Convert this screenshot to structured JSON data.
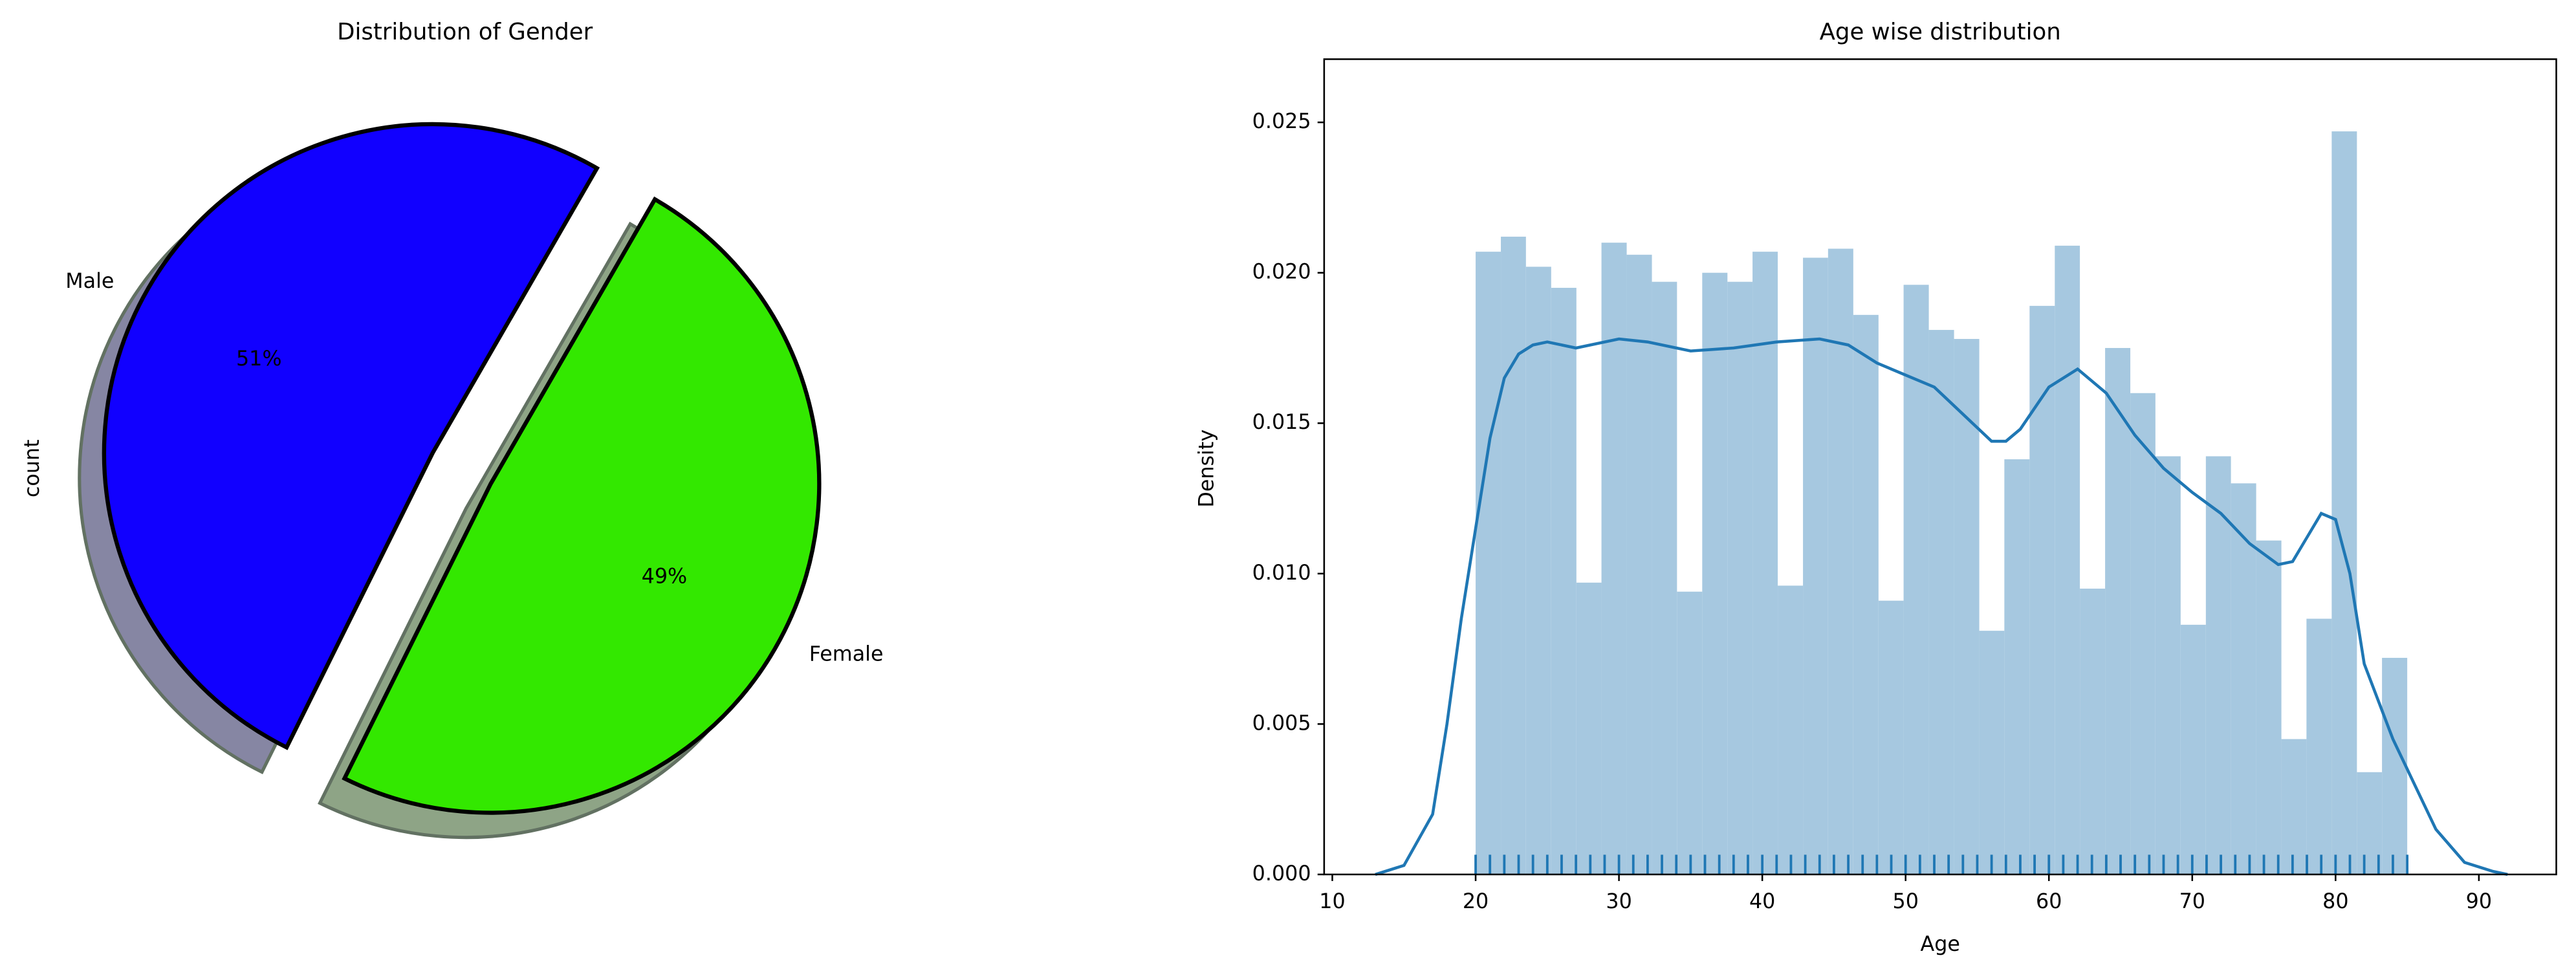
{
  "chart_data": [
    {
      "type": "pie",
      "title": "Distribution of Gender",
      "ylabel": "count",
      "categories": [
        "Male",
        "Female"
      ],
      "values": [
        51,
        49
      ],
      "value_labels": [
        "51%",
        "49%"
      ],
      "colors": [
        "#1100ff",
        "#33e800"
      ],
      "explode": [
        0.1,
        0.1
      ],
      "startangle": 60,
      "shadow": true
    },
    {
      "type": "histogram",
      "title": "Age wise distribution",
      "xlabel": "Age",
      "ylabel": "Density",
      "bins": [
        20,
        21.76,
        23.51,
        25.27,
        27.03,
        28.78,
        30.54,
        32.3,
        34.05,
        35.81,
        37.57,
        39.32,
        41.08,
        42.84,
        44.59,
        46.35,
        48.11,
        49.86,
        51.62,
        53.38,
        55.14,
        56.89,
        58.65,
        60.41,
        62.16,
        63.92,
        65.68,
        67.43,
        69.19,
        70.95,
        72.7,
        74.46,
        76.22,
        77.97,
        79.73,
        81.49,
        83.24,
        85
      ],
      "values": [
        0.0207,
        0.0212,
        0.0202,
        0.0195,
        0.0097,
        0.021,
        0.0206,
        0.0197,
        0.0094,
        0.02,
        0.0197,
        0.0207,
        0.0096,
        0.0205,
        0.0208,
        0.0186,
        0.0091,
        0.0196,
        0.0181,
        0.0178,
        0.0081,
        0.0138,
        0.0189,
        0.0209,
        0.0095,
        0.0175,
        0.016,
        0.0139,
        0.0083,
        0.0139,
        0.013,
        0.0111,
        0.0045,
        0.0085,
        0.0247,
        0.0034,
        0.0072
      ],
      "color": "#a6c8e0",
      "kde": {
        "color": "#1f77b4",
        "x": [
          13,
          15,
          17,
          18,
          19,
          20,
          21,
          22,
          23,
          24,
          25,
          27,
          30,
          32,
          35,
          38,
          41,
          44,
          46,
          48,
          50,
          52,
          54,
          56,
          57,
          58,
          60,
          62,
          64,
          66,
          68,
          70,
          72,
          74,
          76,
          77,
          78,
          79,
          80,
          81,
          82,
          84,
          85,
          87,
          89,
          91,
          92
        ],
        "values": [
          0,
          0.0003,
          0.002,
          0.005,
          0.0085,
          0.0115,
          0.0145,
          0.0165,
          0.0173,
          0.0176,
          0.0177,
          0.0175,
          0.0178,
          0.0177,
          0.0174,
          0.0175,
          0.0177,
          0.0178,
          0.0176,
          0.017,
          0.0166,
          0.0162,
          0.0153,
          0.0144,
          0.0144,
          0.0148,
          0.0162,
          0.0168,
          0.016,
          0.0146,
          0.0135,
          0.0127,
          0.012,
          0.011,
          0.0103,
          0.0104,
          0.0112,
          0.012,
          0.0118,
          0.01,
          0.007,
          0.0045,
          0.0035,
          0.0015,
          0.0004,
          0.0001,
          0
        ]
      },
      "rug": [
        20,
        21,
        22,
        23,
        24,
        25,
        26,
        27,
        28,
        29,
        30,
        31,
        32,
        33,
        34,
        35,
        36,
        37,
        38,
        39,
        40,
        41,
        42,
        43,
        44,
        45,
        46,
        47,
        48,
        49,
        50,
        51,
        52,
        53,
        54,
        55,
        56,
        57,
        58,
        59,
        60,
        61,
        62,
        63,
        64,
        65,
        66,
        67,
        68,
        69,
        70,
        71,
        72,
        73,
        74,
        75,
        76,
        77,
        78,
        79,
        80,
        81,
        82,
        83,
        84,
        85
      ],
      "xlim": [
        9.43,
        95.4
      ],
      "ylim": [
        0,
        0.0271
      ],
      "xticks": [
        10,
        20,
        30,
        40,
        50,
        60,
        70,
        80,
        90
      ],
      "yticks": [
        {
          "value": 0,
          "label": "0.000"
        },
        {
          "value": 0.005,
          "label": "0.005"
        },
        {
          "value": 0.01,
          "label": "0.010"
        },
        {
          "value": 0.015,
          "label": "0.015"
        },
        {
          "value": 0.02,
          "label": "0.020"
        },
        {
          "value": 0.025,
          "label": "0.025"
        }
      ]
    }
  ]
}
